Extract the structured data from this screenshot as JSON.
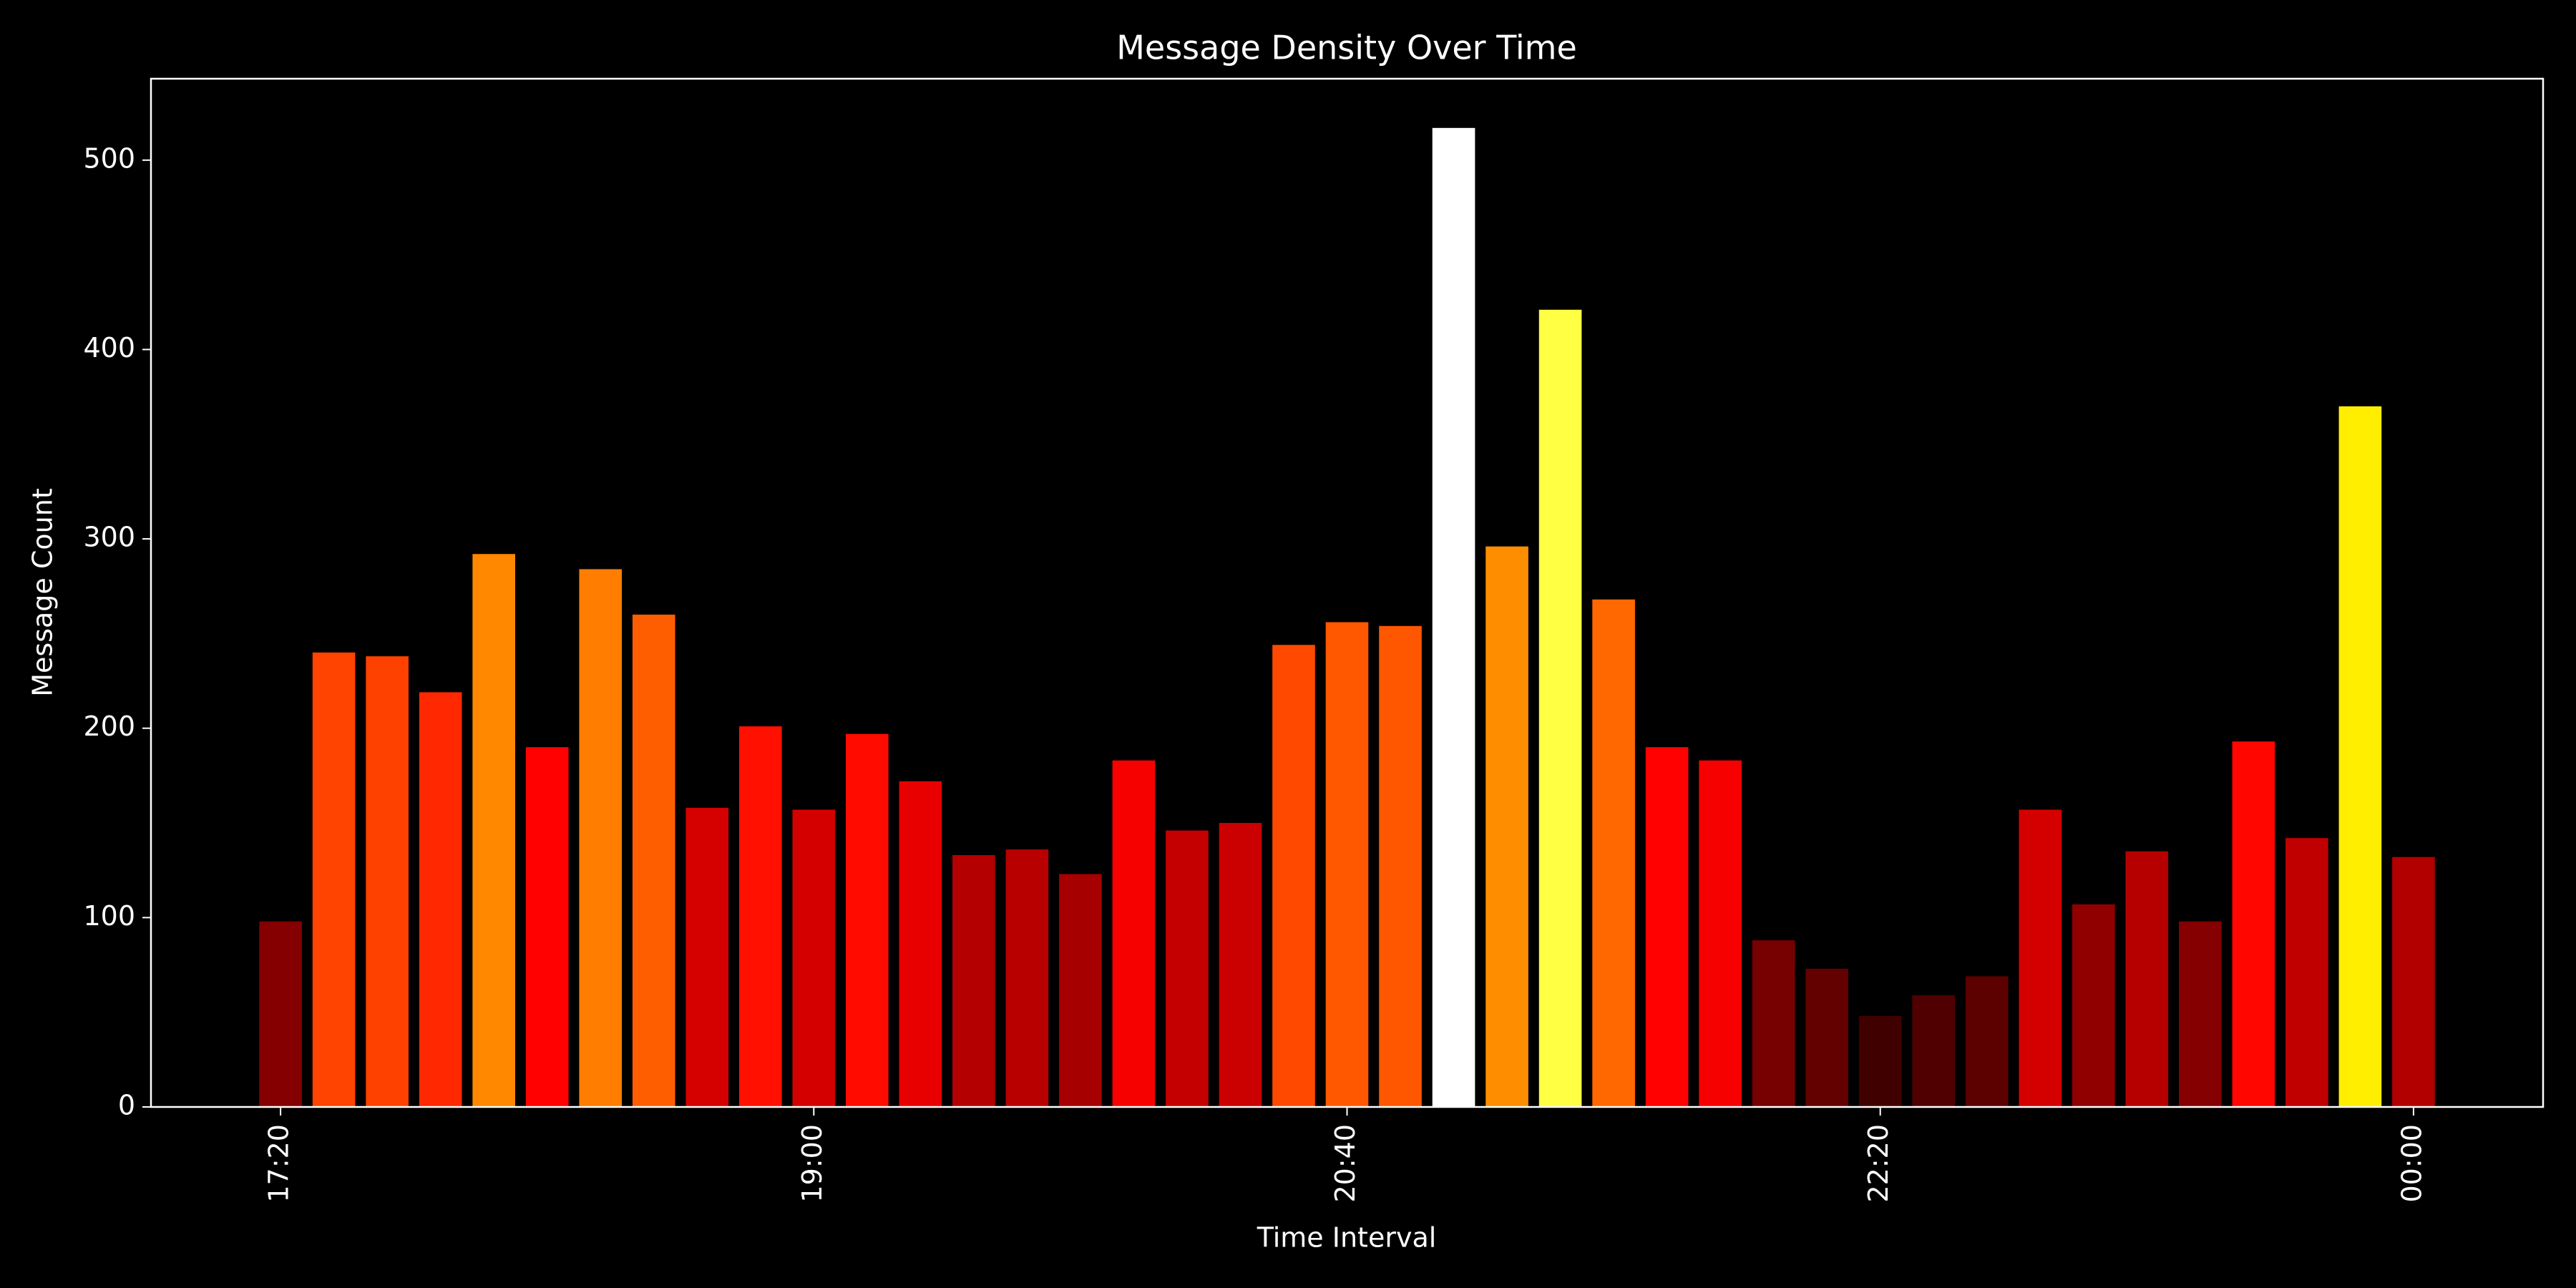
{
  "chart_data": {
    "type": "bar",
    "title": "Message Density Over Time",
    "x_label": "Time Interval",
    "y_label": "Message Count",
    "categories": [
      "17:20",
      null,
      null,
      null,
      null,
      null,
      null,
      null,
      null,
      null,
      "19:00",
      null,
      null,
      null,
      null,
      null,
      null,
      null,
      null,
      null,
      "20:40",
      null,
      null,
      null,
      null,
      null,
      null,
      null,
      null,
      null,
      "22:20",
      null,
      null,
      null,
      null,
      null,
      null,
      null,
      null,
      null,
      "00:00"
    ],
    "values": [
      98,
      240,
      238,
      219,
      292,
      190,
      284,
      260,
      158,
      201,
      157,
      197,
      172,
      133,
      136,
      123,
      183,
      146,
      150,
      244,
      256,
      254,
      517,
      296,
      421,
      268,
      190,
      183,
      88,
      73,
      48,
      59,
      69,
      157,
      107,
      135,
      98,
      193,
      142,
      370,
      132
    ],
    "colors": [
      "#850000",
      "#ff4300",
      "#ff4100",
      "#ff2800",
      "#ff8800",
      "#ff0100",
      "#ff7d00",
      "#ff5e00",
      "#d50000",
      "#ff1000",
      "#d40000",
      "#ff0b00",
      "#e80000",
      "#b40000",
      "#b80000",
      "#a60000",
      "#f70000",
      "#c50000",
      "#cb0000",
      "#ff4900",
      "#ff5800",
      "#ff5600",
      "#ffffff",
      "#ff8d00",
      "#ffff44",
      "#ff6800",
      "#ff0100",
      "#f70000",
      "#770000",
      "#630000",
      "#410000",
      "#500000",
      "#5d0000",
      "#d40000",
      "#910000",
      "#b60000",
      "#850000",
      "#ff0600",
      "#c00000",
      "#ffee00",
      "#b20000"
    ],
    "ylim": [
      0,
      543
    ],
    "yticks": [
      0,
      100,
      200,
      300,
      400,
      500
    ],
    "grid": false
  }
}
